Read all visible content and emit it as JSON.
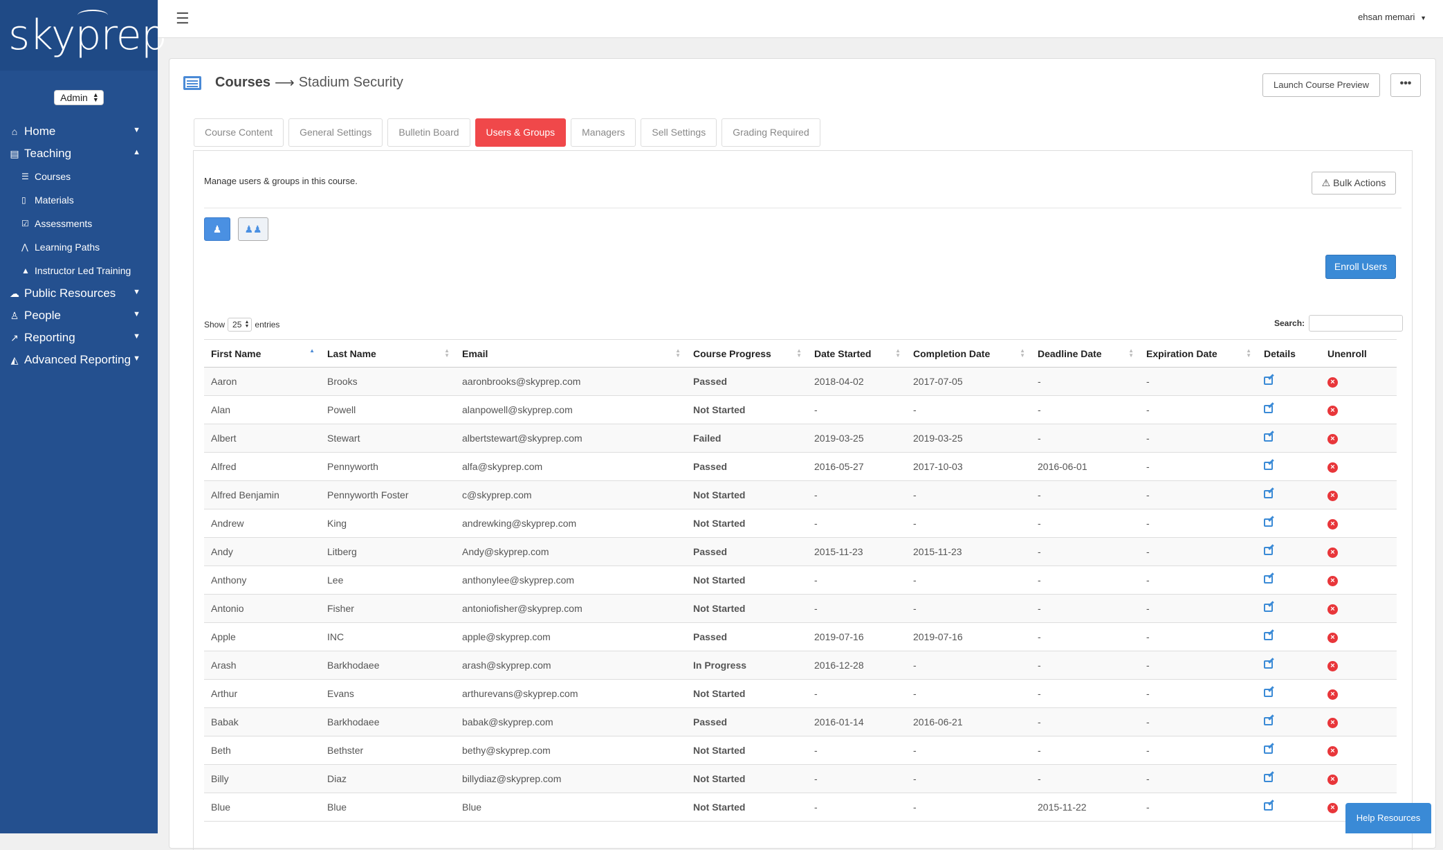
{
  "app": {
    "logo_text": "skyprep"
  },
  "sidebar": {
    "role": "Admin",
    "items": [
      {
        "label": "Home",
        "icon": "home-icon"
      },
      {
        "label": "Teaching",
        "icon": "book-icon"
      },
      {
        "label": "Public Resources",
        "icon": "cloud-icon"
      },
      {
        "label": "People",
        "icon": "person-icon"
      },
      {
        "label": "Reporting",
        "icon": "line-chart-icon"
      },
      {
        "label": "Advanced Reporting",
        "icon": "area-chart-icon"
      }
    ],
    "teaching_sub": [
      {
        "label": "Courses"
      },
      {
        "label": "Materials"
      },
      {
        "label": "Assessments"
      },
      {
        "label": "Learning Paths"
      },
      {
        "label": "Instructor Led Training"
      }
    ]
  },
  "topbar": {
    "user": "ehsan memari"
  },
  "header": {
    "crumb_main": "Courses",
    "crumb_sub": "Stadium Security",
    "launch_label": "Launch Course Preview",
    "more_label": "•••"
  },
  "tabs": [
    {
      "label": "Course Content"
    },
    {
      "label": "General Settings"
    },
    {
      "label": "Bulletin Board"
    },
    {
      "label": "Users & Groups"
    },
    {
      "label": "Managers"
    },
    {
      "label": "Sell Settings"
    },
    {
      "label": "Grading Required"
    }
  ],
  "content": {
    "manage_text": "Manage users & groups in this course.",
    "bulk_label": "Bulk Actions",
    "enroll_label": "Enroll Users",
    "show_label": "Show",
    "entries_value": "25",
    "entries_label": "entries",
    "search_label": "Search:"
  },
  "table": {
    "columns": [
      "First Name",
      "Last Name",
      "Email",
      "Course Progress",
      "Date Started",
      "Completion Date",
      "Deadline Date",
      "Expiration Date",
      "Details",
      "Unenroll"
    ],
    "rows": [
      {
        "first": "Aaron",
        "last": "Brooks",
        "email": "aaronbrooks@skyprep.com",
        "progress": "Passed",
        "started": "2018-04-02",
        "completed": "2017-07-05",
        "deadline": "-",
        "expiration": "-"
      },
      {
        "first": "Alan",
        "last": "Powell",
        "email": "alanpowell@skyprep.com",
        "progress": "Not Started",
        "started": "-",
        "completed": "-",
        "deadline": "-",
        "expiration": "-"
      },
      {
        "first": "Albert",
        "last": "Stewart",
        "email": "albertstewart@skyprep.com",
        "progress": "Failed",
        "started": "2019-03-25",
        "completed": "2019-03-25",
        "deadline": "-",
        "expiration": "-"
      },
      {
        "first": "Alfred",
        "last": "Pennyworth",
        "email": "alfa@skyprep.com",
        "progress": "Passed",
        "started": "2016-05-27",
        "completed": "2017-10-03",
        "deadline": "2016-06-01",
        "expiration": "-"
      },
      {
        "first": "Alfred Benjamin",
        "last": "Pennyworth Foster",
        "email": "c@skyprep.com",
        "progress": "Not Started",
        "started": "-",
        "completed": "-",
        "deadline": "-",
        "expiration": "-"
      },
      {
        "first": "Andrew",
        "last": "King",
        "email": "andrewking@skyprep.com",
        "progress": "Not Started",
        "started": "-",
        "completed": "-",
        "deadline": "-",
        "expiration": "-"
      },
      {
        "first": "Andy",
        "last": "Litberg",
        "email": "Andy@skyprep.com",
        "progress": "Passed",
        "started": "2015-11-23",
        "completed": "2015-11-23",
        "deadline": "-",
        "expiration": "-"
      },
      {
        "first": "Anthony",
        "last": "Lee",
        "email": "anthonylee@skyprep.com",
        "progress": "Not Started",
        "started": "-",
        "completed": "-",
        "deadline": "-",
        "expiration": "-"
      },
      {
        "first": "Antonio",
        "last": "Fisher",
        "email": "antoniofisher@skyprep.com",
        "progress": "Not Started",
        "started": "-",
        "completed": "-",
        "deadline": "-",
        "expiration": "-"
      },
      {
        "first": "Apple",
        "last": "INC",
        "email": "apple@skyprep.com",
        "progress": "Passed",
        "started": "2019-07-16",
        "completed": "2019-07-16",
        "deadline": "-",
        "expiration": "-"
      },
      {
        "first": "Arash",
        "last": "Barkhodaee",
        "email": "arash@skyprep.com",
        "progress": "In Progress",
        "started": "2016-12-28",
        "completed": "-",
        "deadline": "-",
        "expiration": "-"
      },
      {
        "first": "Arthur",
        "last": "Evans",
        "email": "arthurevans@skyprep.com",
        "progress": "Not Started",
        "started": "-",
        "completed": "-",
        "deadline": "-",
        "expiration": "-"
      },
      {
        "first": "Babak",
        "last": "Barkhodaee",
        "email": "babak@skyprep.com",
        "progress": "Passed",
        "started": "2016-01-14",
        "completed": "2016-06-21",
        "deadline": "-",
        "expiration": "-"
      },
      {
        "first": "Beth",
        "last": "Bethster",
        "email": "bethy@skyprep.com",
        "progress": "Not Started",
        "started": "-",
        "completed": "-",
        "deadline": "-",
        "expiration": "-"
      },
      {
        "first": "Billy",
        "last": "Diaz",
        "email": "billydiaz@skyprep.com",
        "progress": "Not Started",
        "started": "-",
        "completed": "-",
        "deadline": "-",
        "expiration": "-"
      },
      {
        "first": "Blue",
        "last": "Blue",
        "email": "Blue",
        "progress": "Not Started",
        "started": "-",
        "completed": "-",
        "deadline": "2015-11-22",
        "expiration": "-"
      }
    ]
  },
  "help_label": "Help Resources",
  "colors": {
    "sidebar": "#24508f",
    "active_tab": "#f0484a",
    "primary": "#3a8ad6",
    "passed": "#39b54a",
    "failed": "#e8363a"
  }
}
